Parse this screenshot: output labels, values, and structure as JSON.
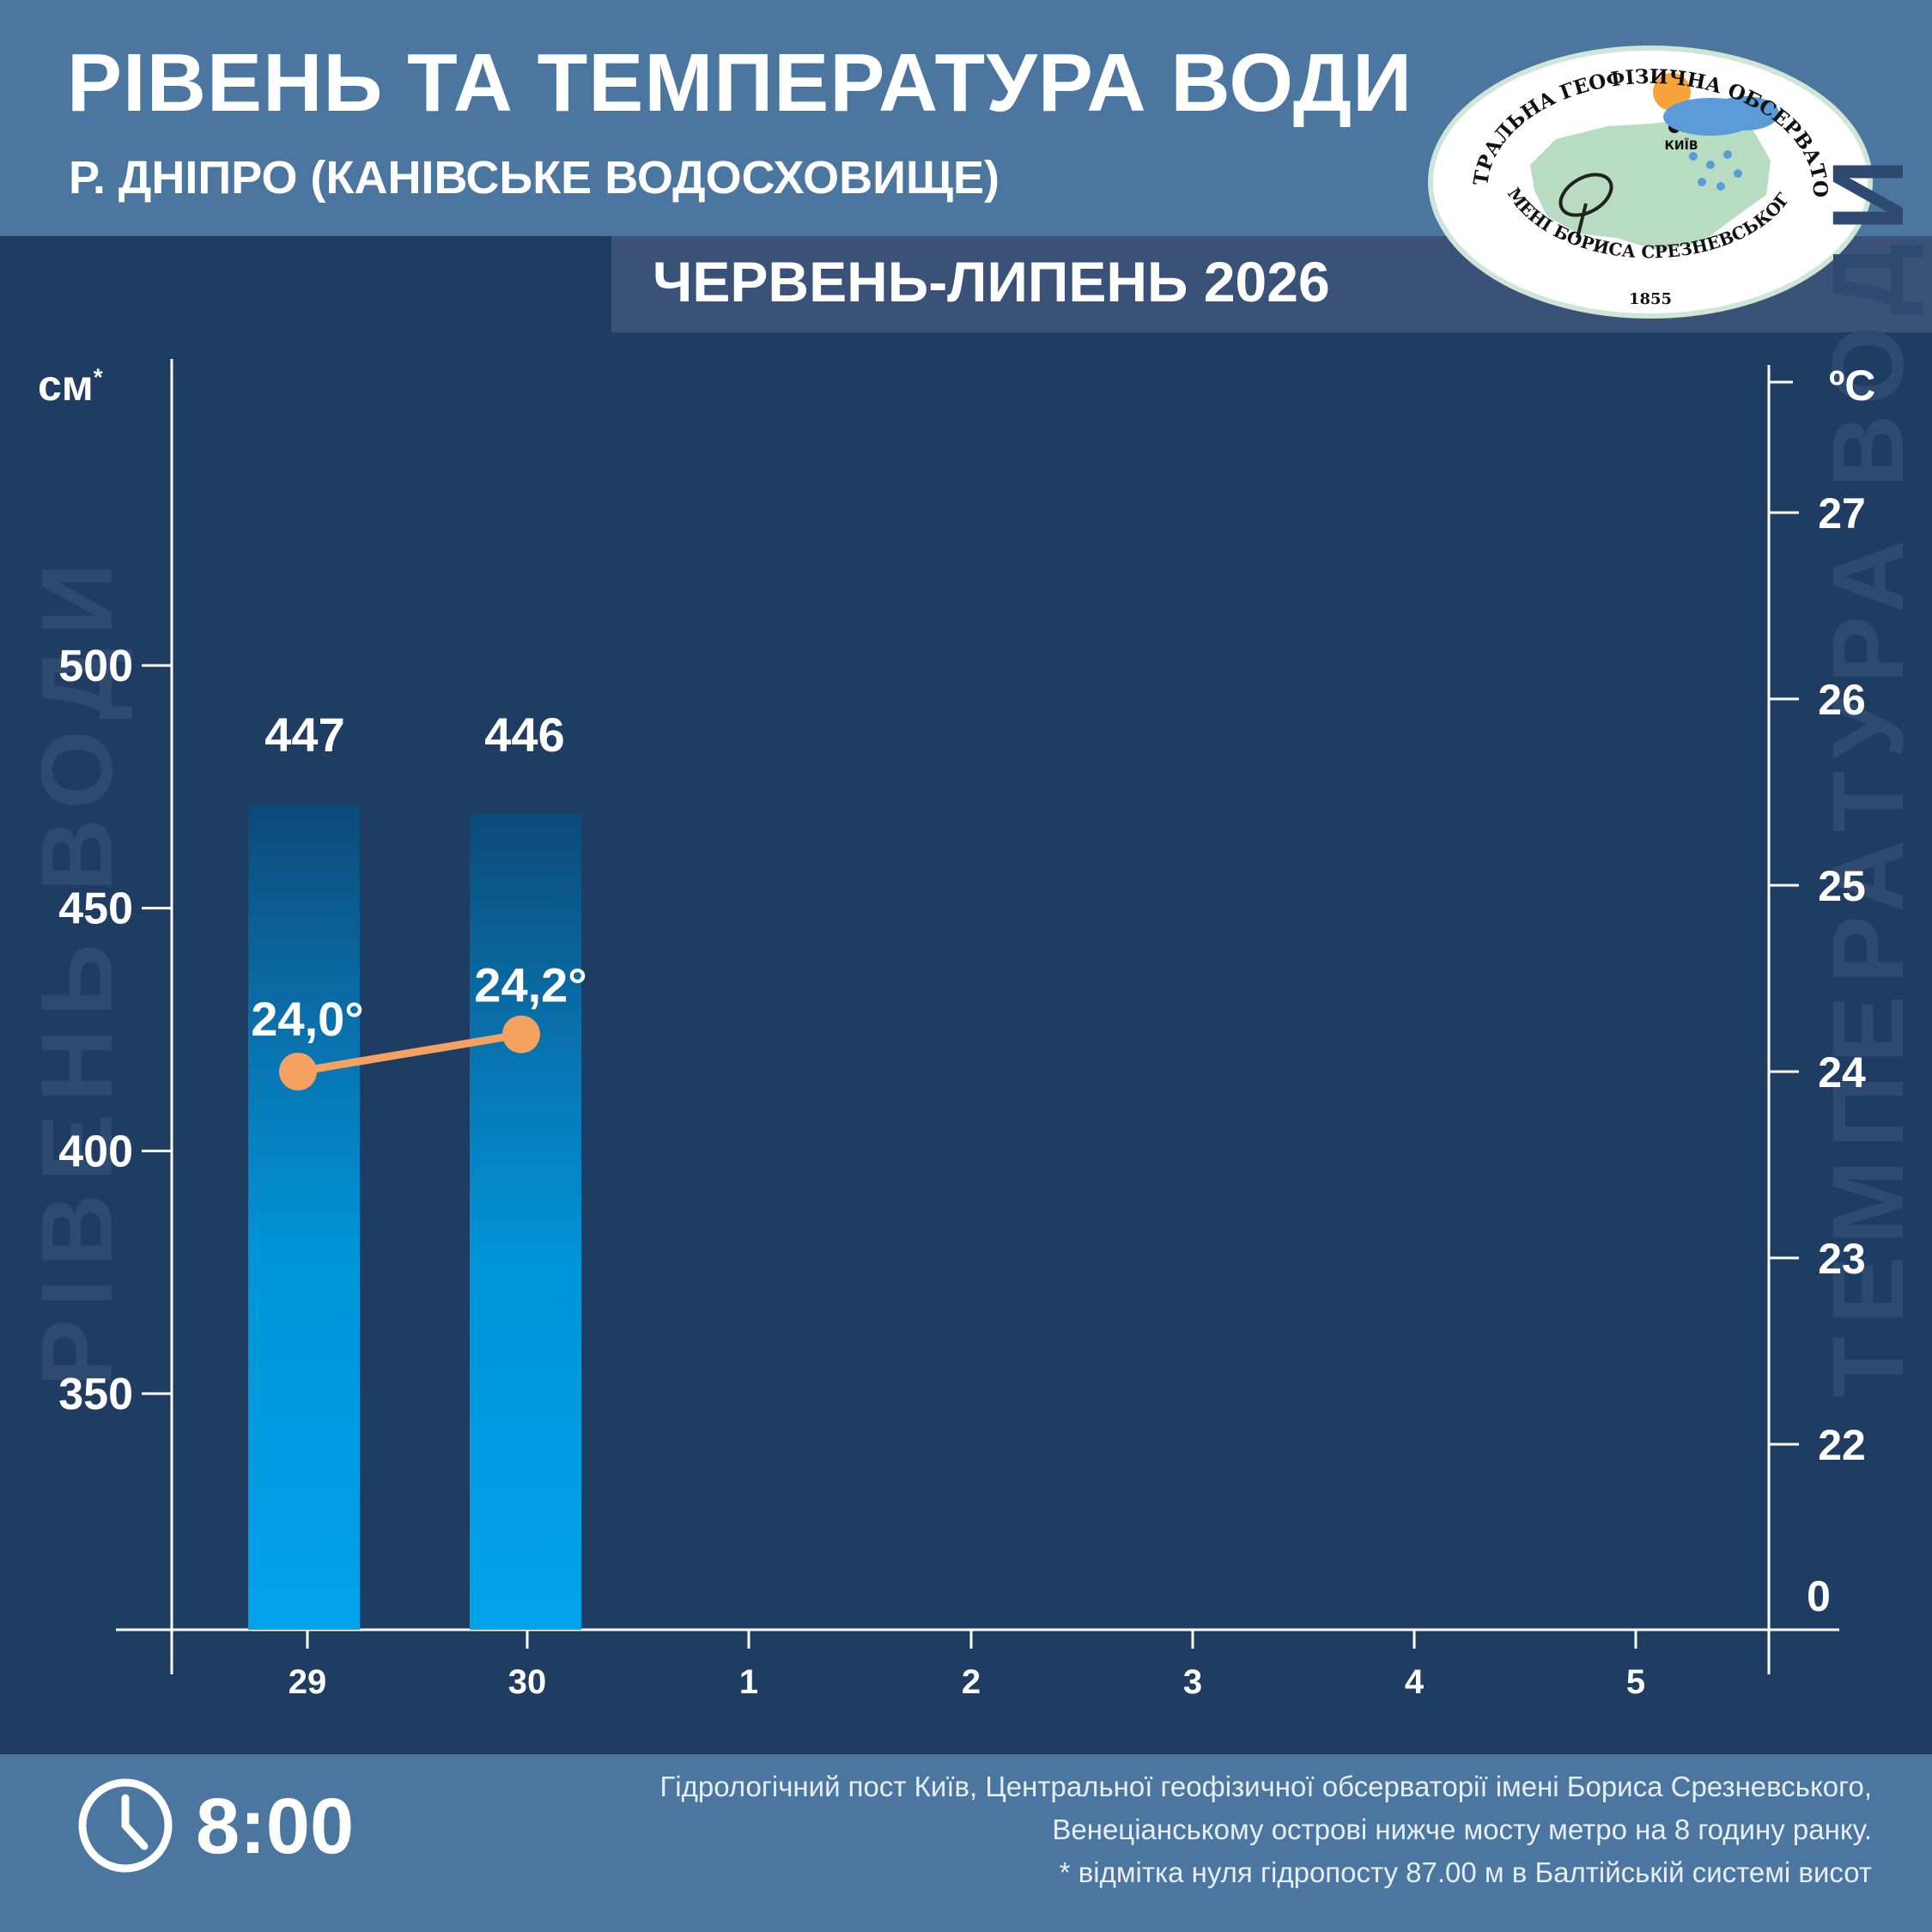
{
  "header": {
    "title": "РІВЕНЬ ТА ТЕМПЕРАТУРА ВОДИ",
    "subtitle": "Р. ДНІПРО (КАНІВСЬКЕ ВОДОСХОВИЩЕ)",
    "period": "ЧЕРВЕНЬ-ЛИПЕНЬ 2026"
  },
  "logo": {
    "top_text": "ЦЕНТРАЛЬНА ГЕОФІЗИЧНА ОБСЕРВАТОРІЯ",
    "bottom_text": "ІМЕНІ БОРИСА СРЕЗНЕВСЬКОГО",
    "year": "1855",
    "city": "КИЇВ"
  },
  "side_labels": {
    "left": "РІВЕНЬ ВОДИ",
    "right": "ТЕМПЕРАТУРА ВОДИ"
  },
  "units": {
    "left": "см",
    "left_mark": "*",
    "right": "ºC"
  },
  "footer": {
    "time": "8:00",
    "note_line1": "Гідрологічний пост Київ, Центральної геофізичної обсерваторії імені Бориса Срезневського,",
    "note_line2": "Венеціанському острові нижче мосту метро  на 8 годину ранку.",
    "note_line3": "* відмітка нуля гідропосту 87.00 м в Балтійській системі висот"
  },
  "colors": {
    "background": "#1f3d63",
    "header": "#4a76a0",
    "bar_top": "#0c4f80",
    "bar_bottom": "#009fe6",
    "temperature_line": "#f4a261"
  },
  "chart_data": {
    "type": "bar",
    "categories": [
      "29",
      "30",
      "1",
      "2",
      "3",
      "4",
      "5"
    ],
    "series": [
      {
        "values": [
          447,
          446,
          null,
          null,
          null,
          null,
          null
        ],
        "labels": [
          "447",
          "446"
        ]
      },
      {
        "type": "line",
        "values": [
          24.0,
          24.2,
          null,
          null,
          null,
          null,
          null
        ],
        "labels": [
          "24,0°",
          "24,2°"
        ]
      }
    ],
    "left_axis": {
      "ticks": [
        350,
        400,
        450,
        500
      ]
    },
    "right_axis": {
      "ticks": [
        "0",
        "22",
        "23",
        "24",
        "25",
        "26",
        "27"
      ],
      "tick_values": [
        null,
        22,
        23,
        24,
        25,
        26,
        27
      ]
    }
  }
}
